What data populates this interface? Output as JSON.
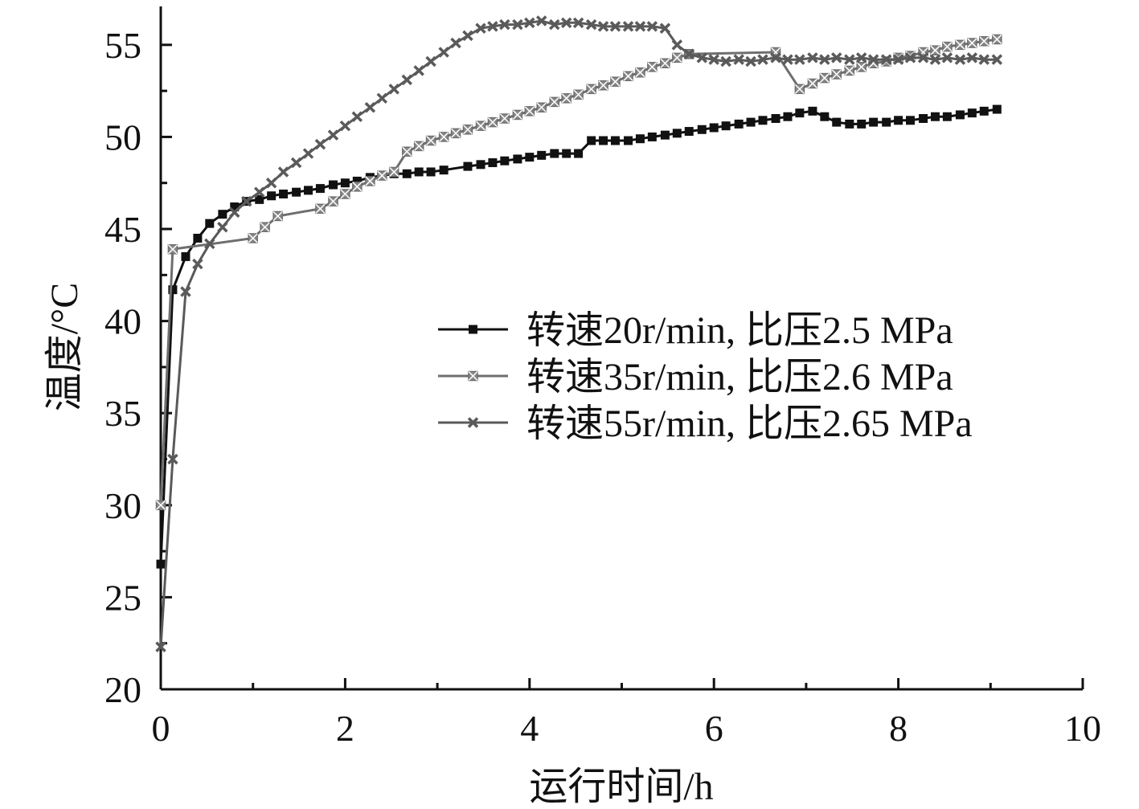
{
  "chart_data": {
    "type": "line",
    "xlabel": "运行时间/h",
    "ylabel": "温度/°C",
    "xlim": [
      0,
      10
    ],
    "ylim": [
      20,
      57
    ],
    "xticks": [
      0,
      2,
      4,
      6,
      8,
      10
    ],
    "yticks": [
      20,
      25,
      30,
      35,
      40,
      45,
      50,
      55
    ],
    "grid": false,
    "legend_position": "center-right",
    "series": [
      {
        "name": "转速20r/min, 比压2.5 MPa",
        "color": "#111111",
        "marker": "square",
        "x": [
          0,
          0.13,
          0.27,
          0.4,
          0.53,
          0.67,
          0.8,
          0.93,
          1.07,
          1.2,
          1.33,
          1.47,
          1.6,
          1.73,
          1.87,
          2.0,
          2.13,
          2.27,
          2.4,
          2.53,
          2.67,
          2.8,
          2.93,
          3.07,
          3.33,
          3.47,
          3.6,
          3.73,
          3.87,
          4.0,
          4.13,
          4.27,
          4.4,
          4.53,
          4.67,
          4.8,
          4.93,
          5.07,
          5.2,
          5.33,
          5.47,
          5.6,
          5.73,
          5.87,
          6.0,
          6.13,
          6.27,
          6.4,
          6.53,
          6.67,
          6.8,
          6.93,
          7.07,
          7.2,
          7.33,
          7.47,
          7.6,
          7.73,
          7.87,
          8.0,
          8.13,
          8.27,
          8.4,
          8.53,
          8.67,
          8.8,
          8.93,
          9.07
        ],
        "y": [
          26.8,
          41.7,
          43.5,
          44.5,
          45.3,
          45.8,
          46.2,
          46.5,
          46.6,
          46.8,
          46.9,
          47.0,
          47.1,
          47.2,
          47.4,
          47.5,
          47.6,
          47.8,
          47.9,
          48.0,
          48.0,
          48.1,
          48.1,
          48.2,
          48.4,
          48.5,
          48.6,
          48.7,
          48.8,
          48.9,
          49.0,
          49.1,
          49.1,
          49.1,
          49.8,
          49.8,
          49.8,
          49.8,
          49.9,
          50.0,
          50.1,
          50.2,
          50.3,
          50.4,
          50.5,
          50.6,
          50.7,
          50.8,
          50.9,
          51.0,
          51.1,
          51.3,
          51.4,
          51.1,
          50.8,
          50.7,
          50.7,
          50.8,
          50.8,
          50.9,
          50.9,
          51.0,
          51.1,
          51.1,
          51.2,
          51.3,
          51.4,
          51.5
        ]
      },
      {
        "name": "转速35r/min, 比压2.6 MPa",
        "color": "#6e6e6e",
        "marker": "x-box",
        "x": [
          0,
          0.13,
          1.0,
          1.13,
          1.27,
          1.73,
          1.87,
          2.0,
          2.13,
          2.27,
          2.4,
          2.53,
          2.67,
          2.8,
          2.93,
          3.07,
          3.2,
          3.33,
          3.47,
          3.6,
          3.73,
          3.87,
          4.0,
          4.13,
          4.27,
          4.4,
          4.53,
          4.67,
          4.8,
          4.93,
          5.07,
          5.2,
          5.33,
          5.47,
          5.6,
          5.73,
          6.67,
          6.93,
          7.07,
          7.2,
          7.33,
          7.47,
          7.6,
          7.73,
          7.87,
          8.0,
          8.13,
          8.27,
          8.4,
          8.53,
          8.67,
          8.8,
          8.93,
          9.07
        ],
        "y": [
          30.0,
          43.9,
          44.5,
          45.1,
          45.7,
          46.1,
          46.5,
          46.9,
          47.3,
          47.6,
          47.9,
          48.1,
          49.2,
          49.5,
          49.8,
          50.0,
          50.2,
          50.4,
          50.6,
          50.8,
          51.0,
          51.2,
          51.4,
          51.6,
          51.9,
          52.1,
          52.3,
          52.6,
          52.8,
          53.0,
          53.3,
          53.5,
          53.8,
          54.0,
          54.3,
          54.5,
          54.6,
          52.6,
          52.9,
          53.2,
          53.4,
          53.6,
          53.8,
          54.0,
          54.1,
          54.3,
          54.4,
          54.6,
          54.7,
          54.9,
          55.0,
          55.1,
          55.2,
          55.3
        ]
      },
      {
        "name": "转速55r/min, 比压2.65 MPa",
        "color": "#5a5a5a",
        "marker": "x",
        "x": [
          0,
          0.13,
          0.27,
          0.4,
          0.53,
          0.67,
          0.8,
          0.93,
          1.07,
          1.2,
          1.33,
          1.47,
          1.6,
          1.73,
          1.87,
          2.0,
          2.13,
          2.27,
          2.4,
          2.53,
          2.67,
          2.8,
          2.93,
          3.07,
          3.2,
          3.33,
          3.47,
          3.6,
          3.73,
          3.87,
          4.0,
          4.13,
          4.27,
          4.4,
          4.53,
          4.67,
          4.8,
          4.93,
          5.07,
          5.2,
          5.33,
          5.47,
          5.6,
          5.73,
          5.87,
          6.0,
          6.13,
          6.27,
          6.4,
          6.53,
          6.67,
          6.8,
          6.93,
          7.07,
          7.2,
          7.33,
          7.47,
          7.6,
          7.73,
          7.87,
          8.0,
          8.13,
          8.27,
          8.4,
          8.53,
          8.67,
          8.8,
          8.93,
          9.07
        ],
        "y": [
          22.3,
          32.5,
          41.6,
          43.1,
          44.2,
          45.1,
          45.9,
          46.5,
          47.0,
          47.5,
          48.1,
          48.6,
          49.1,
          49.6,
          50.1,
          50.6,
          51.1,
          51.6,
          52.1,
          52.6,
          53.1,
          53.6,
          54.1,
          54.6,
          55.1,
          55.5,
          55.9,
          56.0,
          56.1,
          56.1,
          56.2,
          56.3,
          56.1,
          56.2,
          56.2,
          56.1,
          56.0,
          56.0,
          56.0,
          56.0,
          56.0,
          55.9,
          55.0,
          54.5,
          54.3,
          54.2,
          54.1,
          54.2,
          54.1,
          54.2,
          54.3,
          54.2,
          54.2,
          54.3,
          54.2,
          54.3,
          54.2,
          54.3,
          54.2,
          54.2,
          54.2,
          54.3,
          54.3,
          54.2,
          54.3,
          54.2,
          54.3,
          54.2,
          54.2
        ]
      }
    ]
  }
}
